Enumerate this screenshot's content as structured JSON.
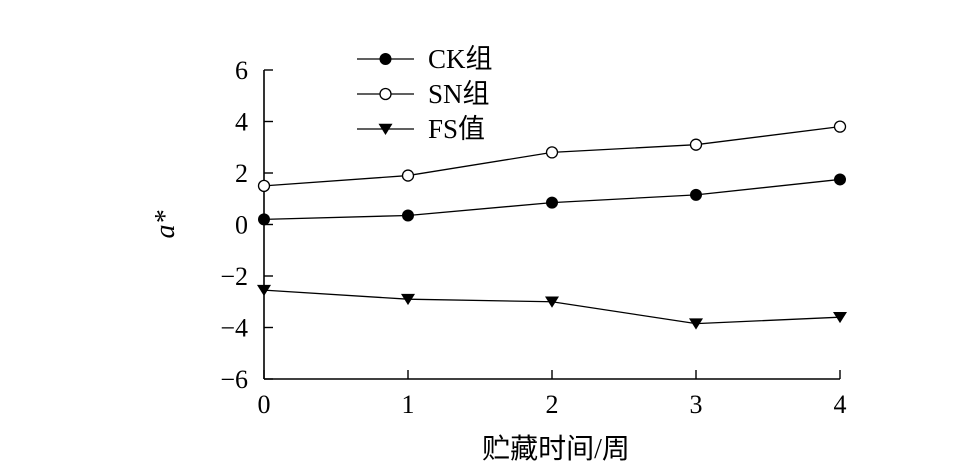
{
  "chart_data": {
    "type": "line",
    "x": [
      0,
      1,
      2,
      3,
      4
    ],
    "xticks": [
      "0",
      "1",
      "2",
      "3",
      "4"
    ],
    "yticks": [
      {
        "v": 6,
        "label": "6"
      },
      {
        "v": 4,
        "label": "4"
      },
      {
        "v": 2,
        "label": "2"
      },
      {
        "v": 0,
        "label": "0"
      },
      {
        "v": -2,
        "label": "−2"
      },
      {
        "v": -4,
        "label": "−4"
      },
      {
        "v": -6,
        "label": "−6"
      }
    ],
    "xlim": [
      0,
      4
    ],
    "ylim": [
      -6,
      6
    ],
    "xlabel": "贮藏时间/周",
    "ylabel": "a*",
    "grid": false,
    "legend_position": "top-left",
    "series": [
      {
        "name": "CK组",
        "marker": "filled-circle",
        "values": [
          0.2,
          0.35,
          0.85,
          1.15,
          1.75
        ]
      },
      {
        "name": "SN组",
        "marker": "open-circle",
        "values": [
          1.5,
          1.9,
          2.8,
          3.1,
          3.8
        ]
      },
      {
        "name": "FS值",
        "marker": "filled-triangle-down",
        "values": [
          -2.55,
          -2.9,
          -3.0,
          -3.85,
          -3.6
        ]
      }
    ]
  }
}
